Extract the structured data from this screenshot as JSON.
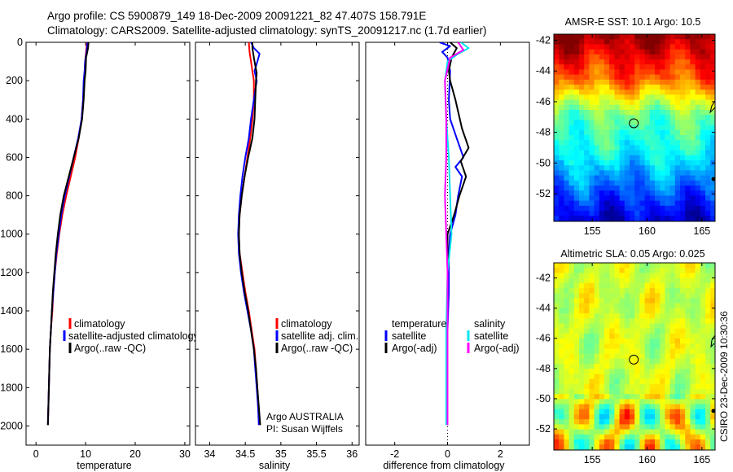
{
  "title": {
    "line1": "Argo profile: CS 5900879_149 18-Dec-2009 20091221_82 47.407S 158.791E",
    "line2": "Climatology: CARS2009. Satellite-adjusted climatology: synTS_20091217.nc (1.7d earlier)"
  },
  "colors": {
    "climatology": "#ff0000",
    "satellite": "#0000ff",
    "argo": "#000000",
    "salinity_satellite": "#00e5ee",
    "salinity_argo": "#ff00ff"
  },
  "footer": "CSIRO 23-Dec-2009 10:30:36",
  "annotation": {
    "line1": "Argo AUSTRALIA",
    "line2": "PI: Susan Wijffels"
  },
  "chart_data": [
    {
      "type": "line",
      "id": "temperature",
      "xlabel": "temperature",
      "ylabel": "",
      "xlim": [
        -2,
        31
      ],
      "ylim": [
        0,
        2100
      ],
      "y_inverted": true,
      "xticks": [
        0,
        10,
        20,
        30
      ],
      "yticks": [
        0,
        200,
        400,
        600,
        800,
        1000,
        1200,
        1400,
        1600,
        1800,
        2000
      ],
      "legend": [
        "climatology",
        "satellite-adjusted climatology",
        "Argo(..raw -QC)"
      ],
      "legend_position": "lower-right",
      "series": [
        {
          "name": "climatology",
          "color": "#ff0000",
          "points": [
            [
              10.3,
              0
            ],
            [
              10.1,
              50
            ],
            [
              9.9,
              100
            ],
            [
              9.7,
              200
            ],
            [
              9.5,
              300
            ],
            [
              9.2,
              400
            ],
            [
              8.6,
              500
            ],
            [
              7.9,
              600
            ],
            [
              7.0,
              700
            ],
            [
              6.1,
              800
            ],
            [
              5.3,
              900
            ],
            [
              4.7,
              1000
            ],
            [
              4.2,
              1100
            ],
            [
              3.8,
              1200
            ],
            [
              3.5,
              1300
            ],
            [
              3.3,
              1400
            ],
            [
              3.0,
              1500
            ],
            [
              2.8,
              1600
            ],
            [
              2.7,
              1700
            ],
            [
              2.6,
              1800
            ],
            [
              2.5,
              1900
            ],
            [
              2.4,
              1995
            ]
          ]
        },
        {
          "name": "satellite-adjusted climatology",
          "color": "#0000ff",
          "points": [
            [
              10.4,
              0
            ],
            [
              10.2,
              50
            ],
            [
              9.9,
              100
            ],
            [
              9.8,
              150
            ],
            [
              9.6,
              200
            ],
            [
              9.5,
              300
            ],
            [
              9.2,
              400
            ],
            [
              8.5,
              500
            ],
            [
              7.6,
              600
            ],
            [
              6.7,
              700
            ],
            [
              5.8,
              800
            ],
            [
              5.1,
              900
            ],
            [
              4.6,
              1000
            ],
            [
              4.1,
              1100
            ],
            [
              3.8,
              1200
            ],
            [
              3.5,
              1300
            ],
            [
              3.2,
              1400
            ],
            [
              3.0,
              1500
            ],
            [
              2.8,
              1600
            ],
            [
              2.7,
              1700
            ],
            [
              2.6,
              1800
            ],
            [
              2.5,
              1900
            ],
            [
              2.4,
              1995
            ]
          ]
        },
        {
          "name": "Argo(..raw -QC)",
          "color": "#000000",
          "points": [
            [
              10.6,
              0
            ],
            [
              10.5,
              30
            ],
            [
              10.1,
              80
            ],
            [
              10.0,
              150
            ],
            [
              9.8,
              200
            ],
            [
              9.6,
              300
            ],
            [
              9.3,
              400
            ],
            [
              8.6,
              500
            ],
            [
              7.6,
              600
            ],
            [
              6.6,
              700
            ],
            [
              5.6,
              800
            ],
            [
              4.9,
              900
            ],
            [
              4.4,
              1000
            ],
            [
              4.0,
              1100
            ],
            [
              3.7,
              1200
            ],
            [
              3.4,
              1300
            ],
            [
              3.2,
              1400
            ],
            [
              3.0,
              1500
            ],
            [
              2.8,
              1600
            ],
            [
              2.7,
              1700
            ],
            [
              2.6,
              1800
            ],
            [
              2.5,
              1900
            ],
            [
              2.4,
              1995
            ]
          ]
        }
      ]
    },
    {
      "type": "line",
      "id": "salinity",
      "xlabel": "salinity",
      "ylabel": "",
      "xlim": [
        33.8,
        36.1
      ],
      "ylim": [
        0,
        2100
      ],
      "y_inverted": true,
      "xticks": [
        34,
        34.5,
        35,
        35.5,
        36
      ],
      "yticks": [
        0,
        200,
        400,
        600,
        800,
        1000,
        1200,
        1400,
        1600,
        1800,
        2000
      ],
      "legend": [
        "climatology",
        "satellite adj. clim.",
        "Argo(..raw -QC)"
      ],
      "legend_position": "lower-right",
      "series": [
        {
          "name": "climatology",
          "color": "#ff0000",
          "points": [
            [
              34.55,
              0
            ],
            [
              34.56,
              50
            ],
            [
              34.58,
              100
            ],
            [
              34.6,
              150
            ],
            [
              34.62,
              200
            ],
            [
              34.62,
              300
            ],
            [
              34.6,
              400
            ],
            [
              34.57,
              500
            ],
            [
              34.53,
              600
            ],
            [
              34.49,
              700
            ],
            [
              34.45,
              800
            ],
            [
              34.42,
              900
            ],
            [
              34.41,
              1000
            ],
            [
              34.42,
              1100
            ],
            [
              34.46,
              1200
            ],
            [
              34.5,
              1300
            ],
            [
              34.55,
              1400
            ],
            [
              34.59,
              1500
            ],
            [
              34.63,
              1600
            ],
            [
              34.65,
              1700
            ],
            [
              34.67,
              1800
            ],
            [
              34.68,
              1900
            ],
            [
              34.7,
              1995
            ]
          ]
        },
        {
          "name": "satellite adj. clim.",
          "color": "#0000ff",
          "points": [
            [
              34.58,
              0
            ],
            [
              34.62,
              30
            ],
            [
              34.7,
              60
            ],
            [
              34.67,
              100
            ],
            [
              34.63,
              150
            ],
            [
              34.66,
              200
            ],
            [
              34.62,
              300
            ],
            [
              34.58,
              400
            ],
            [
              34.55,
              500
            ],
            [
              34.5,
              600
            ],
            [
              34.46,
              700
            ],
            [
              34.43,
              800
            ],
            [
              34.41,
              900
            ],
            [
              34.4,
              1000
            ],
            [
              34.41,
              1100
            ],
            [
              34.44,
              1200
            ],
            [
              34.48,
              1300
            ],
            [
              34.53,
              1400
            ],
            [
              34.58,
              1500
            ],
            [
              34.62,
              1600
            ],
            [
              34.64,
              1700
            ],
            [
              34.66,
              1800
            ],
            [
              34.68,
              1900
            ],
            [
              34.69,
              1995
            ]
          ]
        },
        {
          "name": "Argo(..raw -QC)",
          "color": "#000000",
          "points": [
            [
              34.6,
              0
            ],
            [
              34.6,
              30
            ],
            [
              34.62,
              80
            ],
            [
              34.64,
              120
            ],
            [
              34.66,
              160
            ],
            [
              34.65,
              200
            ],
            [
              34.64,
              300
            ],
            [
              34.63,
              400
            ],
            [
              34.6,
              500
            ],
            [
              34.54,
              600
            ],
            [
              34.49,
              700
            ],
            [
              34.45,
              800
            ],
            [
              34.42,
              900
            ],
            [
              34.41,
              1000
            ],
            [
              34.42,
              1100
            ],
            [
              34.45,
              1200
            ],
            [
              34.49,
              1300
            ],
            [
              34.54,
              1400
            ],
            [
              34.58,
              1500
            ],
            [
              34.62,
              1600
            ],
            [
              34.65,
              1700
            ],
            [
              34.67,
              1800
            ],
            [
              34.69,
              1900
            ],
            [
              34.71,
              1995
            ]
          ]
        }
      ]
    },
    {
      "type": "line",
      "id": "difference",
      "xlabel": "difference from climatology",
      "ylabel": "",
      "xlim": [
        -3.1,
        3.1
      ],
      "ylim": [
        0,
        2100
      ],
      "y_inverted": true,
      "xticks": [
        -2,
        0,
        2
      ],
      "yticks": [
        0,
        200,
        400,
        600,
        800,
        1000,
        1200,
        1400,
        1600,
        1800,
        2000
      ],
      "legend_groups": [
        {
          "heading": "temperature",
          "items": [
            "satellite",
            "Argo(-adj)"
          ]
        },
        {
          "heading": "salinity",
          "items": [
            "satellite",
            "Argo(-adj)"
          ]
        }
      ],
      "legend_position": "lower",
      "series": [
        {
          "name": "temperature satellite",
          "color": "#0000ff",
          "points": [
            [
              -0.3,
              0
            ],
            [
              0.1,
              20
            ],
            [
              -0.2,
              50
            ],
            [
              0.0,
              80
            ],
            [
              0.1,
              150
            ],
            [
              0.05,
              300
            ],
            [
              0.1,
              400
            ],
            [
              0.35,
              500
            ],
            [
              0.6,
              600
            ],
            [
              0.3,
              650
            ],
            [
              0.55,
              700
            ],
            [
              0.4,
              800
            ],
            [
              0.3,
              900
            ],
            [
              0.1,
              1000
            ],
            [
              0.05,
              1100
            ],
            [
              0.05,
              1300
            ],
            [
              0.0,
              1500
            ],
            [
              0.0,
              1700
            ],
            [
              0.0,
              1995
            ]
          ]
        },
        {
          "name": "temperature Argo(-adj)",
          "color": "#000000",
          "points": [
            [
              0.1,
              0
            ],
            [
              0.35,
              30
            ],
            [
              0.15,
              80
            ],
            [
              0.05,
              150
            ],
            [
              0.1,
              200
            ],
            [
              0.3,
              300
            ],
            [
              0.55,
              450
            ],
            [
              0.8,
              550
            ],
            [
              0.5,
              620
            ],
            [
              0.7,
              700
            ],
            [
              0.45,
              800
            ],
            [
              0.25,
              900
            ],
            [
              0.0,
              1000
            ],
            [
              0.0,
              1100
            ],
            [
              0.0,
              1300
            ],
            [
              0.0,
              1500
            ],
            [
              0.0,
              1700
            ],
            [
              0.0,
              1995
            ]
          ]
        },
        {
          "name": "salinity satellite",
          "color": "#00e5ee",
          "points": [
            [
              0.5,
              0
            ],
            [
              0.8,
              30
            ],
            [
              0.4,
              60
            ],
            [
              0.0,
              100
            ],
            [
              -0.1,
              200
            ],
            [
              -0.05,
              400
            ],
            [
              0.05,
              600
            ],
            [
              0.1,
              800
            ],
            [
              0.15,
              1000
            ],
            [
              0.0,
              1200
            ],
            [
              -0.05,
              1500
            ],
            [
              -0.05,
              1700
            ],
            [
              -0.05,
              1995
            ]
          ]
        },
        {
          "name": "salinity Argo(-adj)",
          "color": "#ff00ff",
          "points": [
            [
              0.4,
              0
            ],
            [
              0.6,
              40
            ],
            [
              0.1,
              80
            ],
            [
              -0.1,
              200
            ],
            [
              -0.05,
              400
            ],
            [
              -0.05,
              600
            ],
            [
              -0.1,
              800
            ],
            [
              -0.05,
              1000
            ],
            [
              0.0,
              1200
            ],
            [
              0.0,
              1500
            ],
            [
              0.0,
              1995
            ]
          ]
        }
      ]
    },
    {
      "type": "heatmap",
      "id": "sst-map",
      "title": "AMSR-E SST: 10.1 Argo: 10.5",
      "xlim": [
        151.5,
        166.2
      ],
      "ylim": [
        -53.8,
        -41.6
      ],
      "xticks": [
        155,
        160,
        165
      ],
      "yticks": [
        -42,
        -44,
        -46,
        -48,
        -50,
        -52
      ],
      "marker": {
        "lon": 158.79,
        "lat": -47.41
      }
    },
    {
      "type": "heatmap",
      "id": "sla-map",
      "title": "Altimetric SLA: 0.05 Argo: 0.025",
      "xlim": [
        151.5,
        166.2
      ],
      "ylim": [
        -53.4,
        -41.0
      ],
      "xticks": [
        155,
        160,
        165
      ],
      "yticks": [
        -42,
        -44,
        -46,
        -48,
        -50,
        -52
      ],
      "marker": {
        "lon": 158.79,
        "lat": -47.41
      }
    }
  ]
}
